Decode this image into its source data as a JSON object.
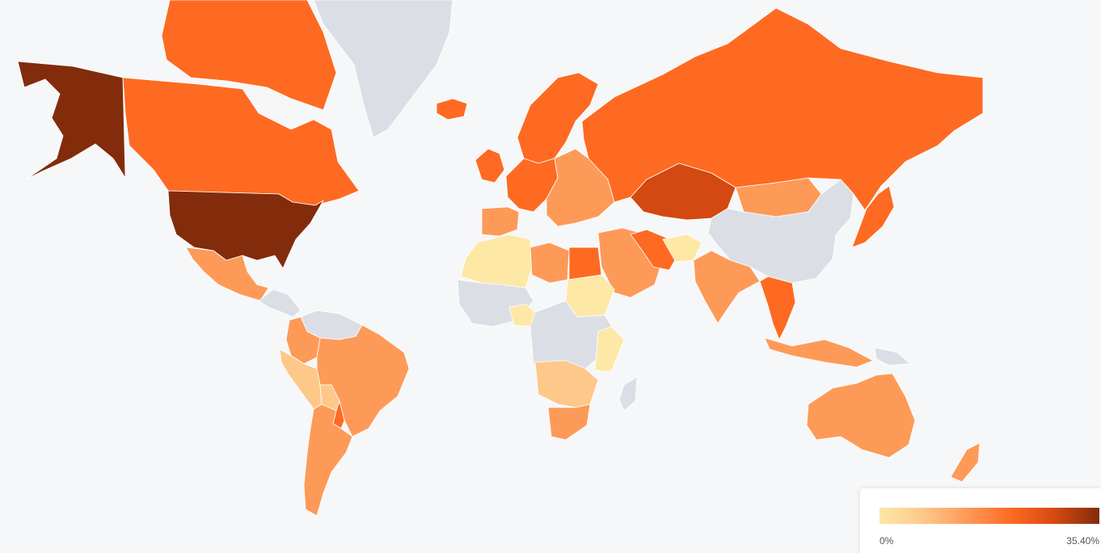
{
  "colors": {
    "no_data": "#dcdee6",
    "background": "#f6f7f9",
    "scale": [
      "#fde8a6",
      "#fdc889",
      "#fd9a58",
      "#fe6a22",
      "#d44812",
      "#822c0c"
    ]
  },
  "legend": {
    "min_label": "0%",
    "max_label": "35.40%",
    "gradient": [
      "#fde8a6",
      "#fdc889",
      "#fd9a58",
      "#fe6a22",
      "#d44812",
      "#822c0c"
    ]
  },
  "regions": [
    {
      "id": "alaska",
      "level": 5
    },
    {
      "id": "canada",
      "level": 3
    },
    {
      "id": "canadian-arctic",
      "level": 3
    },
    {
      "id": "greenland",
      "level": null
    },
    {
      "id": "iceland",
      "level": 3
    },
    {
      "id": "united-states",
      "level": 5
    },
    {
      "id": "mexico",
      "level": 2
    },
    {
      "id": "central-america",
      "level": null
    },
    {
      "id": "colombia",
      "level": 2
    },
    {
      "id": "venezuela",
      "level": null
    },
    {
      "id": "ecuador-peru",
      "level": 1
    },
    {
      "id": "brazil",
      "level": 2
    },
    {
      "id": "bolivia",
      "level": 1
    },
    {
      "id": "paraguay",
      "level": 3
    },
    {
      "id": "chile-argentina",
      "level": 2
    },
    {
      "id": "uk-ireland",
      "level": 3
    },
    {
      "id": "scandinavia",
      "level": 3
    },
    {
      "id": "western-europe",
      "level": 3
    },
    {
      "id": "eastern-europe",
      "level": 2
    },
    {
      "id": "iberia",
      "level": 2
    },
    {
      "id": "russia",
      "level": 3
    },
    {
      "id": "kazakhstan",
      "level": 4
    },
    {
      "id": "mongolia",
      "level": 2
    },
    {
      "id": "china",
      "level": null
    },
    {
      "id": "japan",
      "level": 3
    },
    {
      "id": "middle-east",
      "level": 2
    },
    {
      "id": "iran",
      "level": 3
    },
    {
      "id": "afghanistan",
      "level": 0
    },
    {
      "id": "india",
      "level": 2
    },
    {
      "id": "southeast-asia",
      "level": 3
    },
    {
      "id": "indonesia",
      "level": 2
    },
    {
      "id": "papua",
      "level": null
    },
    {
      "id": "australia",
      "level": 2
    },
    {
      "id": "new-zealand",
      "level": 2
    },
    {
      "id": "north-africa-west",
      "level": 0
    },
    {
      "id": "libya",
      "level": 2
    },
    {
      "id": "egypt",
      "level": 3
    },
    {
      "id": "sudan",
      "level": 0
    },
    {
      "id": "west-africa",
      "level": null
    },
    {
      "id": "nigeria",
      "level": 0
    },
    {
      "id": "central-africa",
      "level": null
    },
    {
      "id": "east-africa",
      "level": 0
    },
    {
      "id": "southern-africa",
      "level": 1
    },
    {
      "id": "south-africa",
      "level": 2
    },
    {
      "id": "madagascar",
      "level": null
    }
  ]
}
